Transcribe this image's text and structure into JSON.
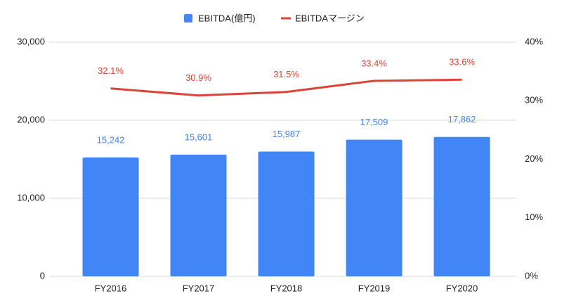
{
  "chart_data": {
    "type": "bar",
    "categories": [
      "FY2016",
      "FY2017",
      "FY2018",
      "FY2019",
      "FY2020"
    ],
    "series": [
      {
        "name": "EBITDA(億円)",
        "type": "bar",
        "color": "#4285f4",
        "values": [
          15242,
          15601,
          15987,
          17509,
          17862
        ],
        "value_labels": [
          "15,242",
          "15,601",
          "15,987",
          "17,509",
          "17,862"
        ]
      },
      {
        "name": "EBITDAマージン",
        "type": "line",
        "axis": "y2",
        "color": "#db4437",
        "values": [
          32.1,
          30.9,
          31.5,
          33.4,
          33.6
        ],
        "value_labels": [
          "32.1%",
          "30.9%",
          "31.5%",
          "33.4%",
          "33.6%"
        ]
      }
    ],
    "ylim": [
      0,
      30000
    ],
    "yticks": [
      {
        "value": 0,
        "label": "0"
      },
      {
        "value": 10000,
        "label": "10,000"
      },
      {
        "value": 20000,
        "label": "20,000"
      },
      {
        "value": 30000,
        "label": "30,000"
      }
    ],
    "y2lim": [
      0,
      40
    ],
    "y2ticks": [
      {
        "value": 0,
        "label": "0%"
      },
      {
        "value": 10,
        "label": "10%"
      },
      {
        "value": 20,
        "label": "20%"
      },
      {
        "value": 30,
        "label": "30%"
      },
      {
        "value": 40,
        "label": "40%"
      }
    ],
    "grid": true,
    "legend": "top"
  }
}
